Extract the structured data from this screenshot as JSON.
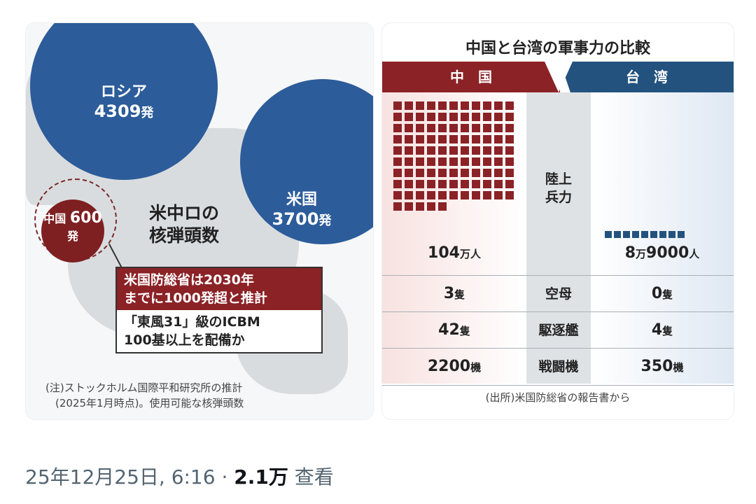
{
  "map": {
    "russia_label": "ロシア",
    "russia_value": "4309",
    "us_label": "米国",
    "us_value": "3700",
    "china_label": "中国",
    "china_value": "600",
    "unit": "発",
    "title_line1": "米中ロの",
    "title_line2": "核弾頭数",
    "callout_top_line1": "米国防総省は2030年",
    "callout_top_line2": "までに1000発超と推計",
    "callout_bottom_line1": "「東風31」級のICBM",
    "callout_bottom_line2": "100基以上を配備か",
    "note_line1": "(注)ストックホルム国際平和研究所の推計",
    "note_line2": "(2025年1月時点)。使用可能な核弾頭数"
  },
  "comparison": {
    "title": "中国と台湾の軍事力の比較",
    "header_china": "中　国",
    "header_taiwan": "台　湾",
    "army": {
      "label_line1": "陸上",
      "label_line2": "兵力",
      "china_num": "104",
      "china_unit": "万人",
      "taiwan_num1": "8",
      "taiwan_unit1": "万",
      "taiwan_num2": "9000",
      "taiwan_unit2": "人"
    },
    "rows": [
      {
        "label": "空母",
        "china_num": "3",
        "china_unit": "隻",
        "taiwan_num": "0",
        "taiwan_unit": "隻"
      },
      {
        "label": "駆逐艦",
        "china_num": "42",
        "china_unit": "隻",
        "taiwan_num": "4",
        "taiwan_unit": "隻"
      },
      {
        "label": "戦闘機",
        "china_num": "2200",
        "china_unit": "機",
        "taiwan_num": "350",
        "taiwan_unit": "機"
      }
    ],
    "source": "(出所)米国防総省の報告書から"
  },
  "tweet": {
    "date": "25年12月25日, 6:16 · ",
    "views_count": "2.1万",
    "views_label": " 查看"
  },
  "colors": {
    "china_red": "#8b2226",
    "taiwan_blue": "#23527e",
    "circle_blue": "#2c5c9a"
  }
}
